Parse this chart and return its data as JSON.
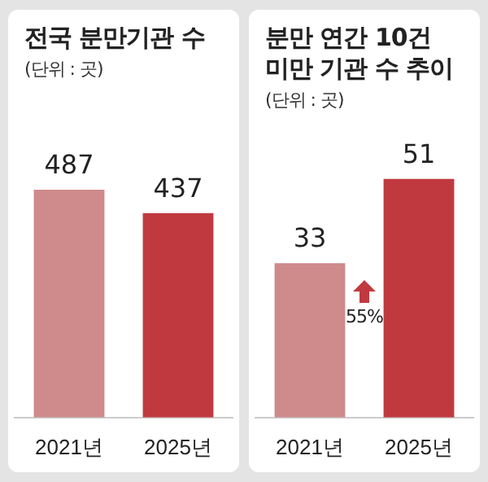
{
  "chart_data": [
    {
      "type": "bar",
      "title": "전국 분만기관 수",
      "subtitle": "(단위 : 곳)",
      "categories": [
        "2021년",
        "2025년"
      ],
      "values": [
        487,
        437
      ],
      "colors": [
        "#cf8a8c",
        "#c0393f"
      ],
      "data_labels": true
    },
    {
      "type": "bar",
      "title": "분만 연간 10건 미만 기관 수 추이",
      "subtitle": "(단위 : 곳)",
      "categories": [
        "2021년",
        "2025년"
      ],
      "values": [
        33,
        51
      ],
      "colors": [
        "#cf8a8c",
        "#c0393f"
      ],
      "data_labels": true,
      "annotations": [
        "55%"
      ]
    }
  ]
}
